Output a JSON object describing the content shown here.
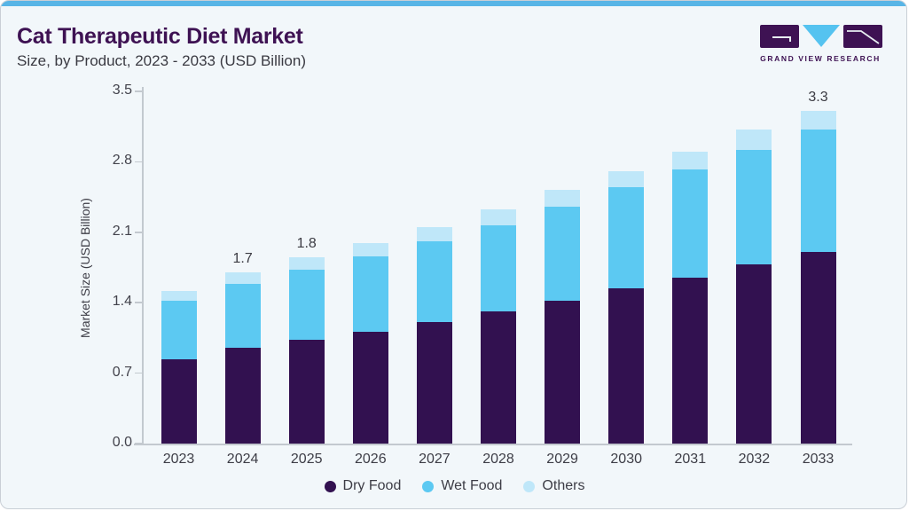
{
  "header": {
    "title": "Cat Therapeutic Diet Market",
    "subtitle": "Size, by Product, 2023 - 2033 (USD Billion)"
  },
  "logo": {
    "brand_text": "GRAND VIEW RESEARCH"
  },
  "chart_data": {
    "type": "bar",
    "stacked": true,
    "title": "Cat Therapeutic Diet Market Size, by Product, 2023 - 2033 (USD Billion)",
    "categories": [
      "2023",
      "2024",
      "2025",
      "2026",
      "2027",
      "2028",
      "2029",
      "2030",
      "2031",
      "2032",
      "2033"
    ],
    "series": [
      {
        "name": "Dry Food",
        "color": "#321150",
        "values": [
          0.84,
          0.95,
          1.03,
          1.11,
          1.21,
          1.31,
          1.42,
          1.54,
          1.65,
          1.78,
          1.9
        ]
      },
      {
        "name": "Wet Food",
        "color": "#5cc9f2",
        "values": [
          0.58,
          0.64,
          0.7,
          0.75,
          0.8,
          0.86,
          0.93,
          1.01,
          1.07,
          1.14,
          1.22
        ]
      },
      {
        "name": "Others",
        "color": "#bfe7f9",
        "values": [
          0.1,
          0.11,
          0.12,
          0.13,
          0.14,
          0.16,
          0.17,
          0.16,
          0.18,
          0.2,
          0.19
        ]
      }
    ],
    "total_labels": {
      "2024": "1.7",
      "2025": "1.8",
      "2033": "3.3"
    },
    "xlabel": "",
    "ylabel": "Market Size (USD Billion)",
    "ylim": [
      0,
      3.5
    ],
    "ytick_step": 0.7,
    "yticks": [
      "0.0",
      "0.7",
      "1.4",
      "2.1",
      "2.8",
      "3.5"
    ],
    "legend": [
      "Dry Food",
      "Wet Food",
      "Others"
    ],
    "legend_position": "bottom",
    "grid": false
  },
  "colors": {
    "card_background": "#f2f7fa",
    "top_strip": "#58b5e6",
    "title_text": "#3e1253",
    "body_text": "#3a3a42",
    "axis": "#c3c9cf",
    "dry_food": "#321150",
    "wet_food": "#5cc9f2",
    "others": "#bfe7f9",
    "logo_purple": "#3e1253",
    "logo_blue": "#55c3f0"
  }
}
